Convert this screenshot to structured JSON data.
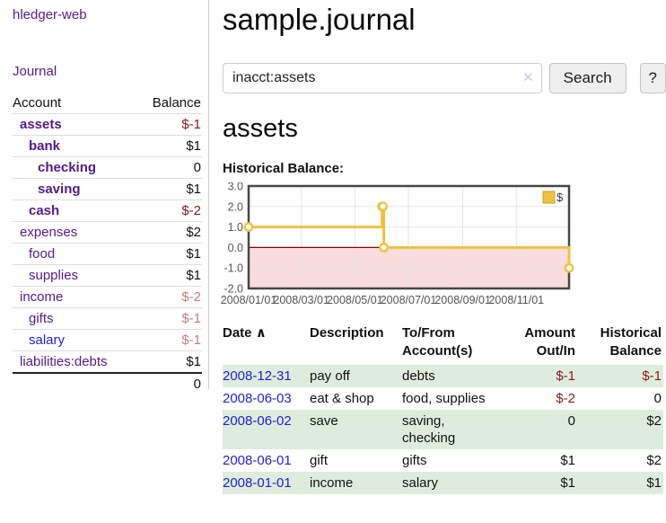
{
  "colors": {
    "link_purple": "#551a8b",
    "link_blue": "#2222cc",
    "negative_strong": "#8b1717",
    "negative_soft": "#c47c7c",
    "row_green": "#deecde",
    "chart_line": "#edc240",
    "chart_negative_fill": "#fadcdc",
    "chart_zero_line": "#8b0000",
    "chart_grid": "#e4e4e4",
    "chart_border": "#474747"
  },
  "sidebar": {
    "app_link": "hledger-web",
    "journal_link": "Journal",
    "accounts_header": {
      "account": "Account",
      "balance": "Balance"
    },
    "accounts": [
      {
        "label": "assets",
        "balance": "$-1",
        "depth": 1,
        "bold": true,
        "label_style": "purple",
        "value_style": "neg-strong"
      },
      {
        "label": "bank",
        "balance": "$1",
        "depth": 2,
        "bold": true,
        "label_style": "purple",
        "value_style": ""
      },
      {
        "label": "checking",
        "balance": "0",
        "depth": 3,
        "bold": true,
        "label_style": "purple",
        "value_style": ""
      },
      {
        "label": "saving",
        "balance": "$1",
        "depth": 3,
        "bold": true,
        "label_style": "purple",
        "value_style": ""
      },
      {
        "label": "cash",
        "balance": "$-2",
        "depth": 2,
        "bold": true,
        "label_style": "purple",
        "value_style": "neg-strong"
      },
      {
        "label": "expenses",
        "balance": "$2",
        "depth": 1,
        "bold": false,
        "label_style": "purple",
        "value_style": ""
      },
      {
        "label": "food",
        "balance": "$1",
        "depth": 2,
        "bold": false,
        "label_style": "purple",
        "value_style": ""
      },
      {
        "label": "supplies",
        "balance": "$1",
        "depth": 2,
        "bold": false,
        "label_style": "purple",
        "value_style": ""
      },
      {
        "label": "income",
        "balance": "$-2",
        "depth": 1,
        "bold": false,
        "label_style": "purple",
        "value_style": "neg-soft"
      },
      {
        "label": "gifts",
        "balance": "$-1",
        "depth": 2,
        "bold": false,
        "label_style": "purple",
        "value_style": "neg-soft"
      },
      {
        "label": "salary",
        "balance": "$-1",
        "depth": 2,
        "bold": false,
        "label_style": "blue",
        "value_style": "neg-soft"
      },
      {
        "label": "liabilities:debts",
        "balance": "$1",
        "depth": 1,
        "bold": false,
        "label_style": "purple",
        "value_style": ""
      }
    ],
    "total": "0"
  },
  "header": {
    "title": "sample.journal"
  },
  "search": {
    "query": "inacct:assets",
    "clear_icon": "✕",
    "search_button": "Search",
    "help_button": "?"
  },
  "account_page": {
    "heading": "assets",
    "chart_title": "Historical Balance:"
  },
  "chart_data": {
    "type": "line",
    "step": true,
    "title": "Historical Balance:",
    "xlabel": "",
    "ylabel": "",
    "xlim": [
      0,
      365
    ],
    "ylim": [
      -2,
      3
    ],
    "grid": true,
    "legend": {
      "label": "$",
      "position": "top-right"
    },
    "series": [
      {
        "name": "$",
        "color": "#edc240",
        "points": [
          {
            "date": "2008-01-01",
            "x": 0,
            "y": 1
          },
          {
            "date": "2008-06-01",
            "x": 152,
            "y": 2
          },
          {
            "date": "2008-06-02",
            "x": 153,
            "y": 2
          },
          {
            "date": "2008-06-03",
            "x": 154,
            "y": 0
          },
          {
            "date": "2008-12-31",
            "x": 365,
            "y": -1
          }
        ]
      }
    ],
    "yticks": [
      {
        "v": 3,
        "label": "3.0"
      },
      {
        "v": 2,
        "label": "2.0"
      },
      {
        "v": 1,
        "label": "1.0"
      },
      {
        "v": 0,
        "label": "0.0"
      },
      {
        "v": -1,
        "label": "-1.0"
      },
      {
        "v": -2,
        "label": "-2.0"
      }
    ],
    "xticks": [
      {
        "x": 0,
        "label": "2008/01/01"
      },
      {
        "x": 60,
        "label": "2008/03/01"
      },
      {
        "x": 121,
        "label": "2008/05/01"
      },
      {
        "x": 182,
        "label": "2008/07/01"
      },
      {
        "x": 244,
        "label": "2008/09/01"
      },
      {
        "x": 305,
        "label": "2008/11/01"
      }
    ]
  },
  "register": {
    "columns": {
      "date": "Date",
      "sort_caret": "∧",
      "description": "Description",
      "accounts_line1": "To/From",
      "accounts_line2": "Account(s)",
      "amount_line1": "Amount",
      "amount_line2": "Out/In",
      "balance_line1": "Historical",
      "balance_line2": "Balance"
    },
    "rows": [
      {
        "date": "2008-12-31",
        "description": "pay off",
        "accounts": [
          "debts"
        ],
        "amount": "$-1",
        "amount_neg": true,
        "balance": "$-1",
        "balance_neg": true,
        "shaded": true
      },
      {
        "date": "2008-06-03",
        "description": "eat & shop",
        "accounts": [
          "food, supplies"
        ],
        "amount": "$-2",
        "amount_neg": true,
        "balance": "0",
        "balance_neg": false,
        "shaded": false
      },
      {
        "date": "2008-06-02",
        "description": "save",
        "accounts": [
          "saving,",
          "checking"
        ],
        "amount": "0",
        "amount_neg": false,
        "balance": "$2",
        "balance_neg": false,
        "shaded": true
      },
      {
        "date": "2008-06-01",
        "description": "gift",
        "accounts": [
          "gifts"
        ],
        "amount": "$1",
        "amount_neg": false,
        "balance": "$2",
        "balance_neg": false,
        "shaded": false
      },
      {
        "date": "2008-01-01",
        "description": "income",
        "accounts": [
          "salary"
        ],
        "amount": "$1",
        "amount_neg": false,
        "balance": "$1",
        "balance_neg": false,
        "shaded": true
      }
    ]
  }
}
